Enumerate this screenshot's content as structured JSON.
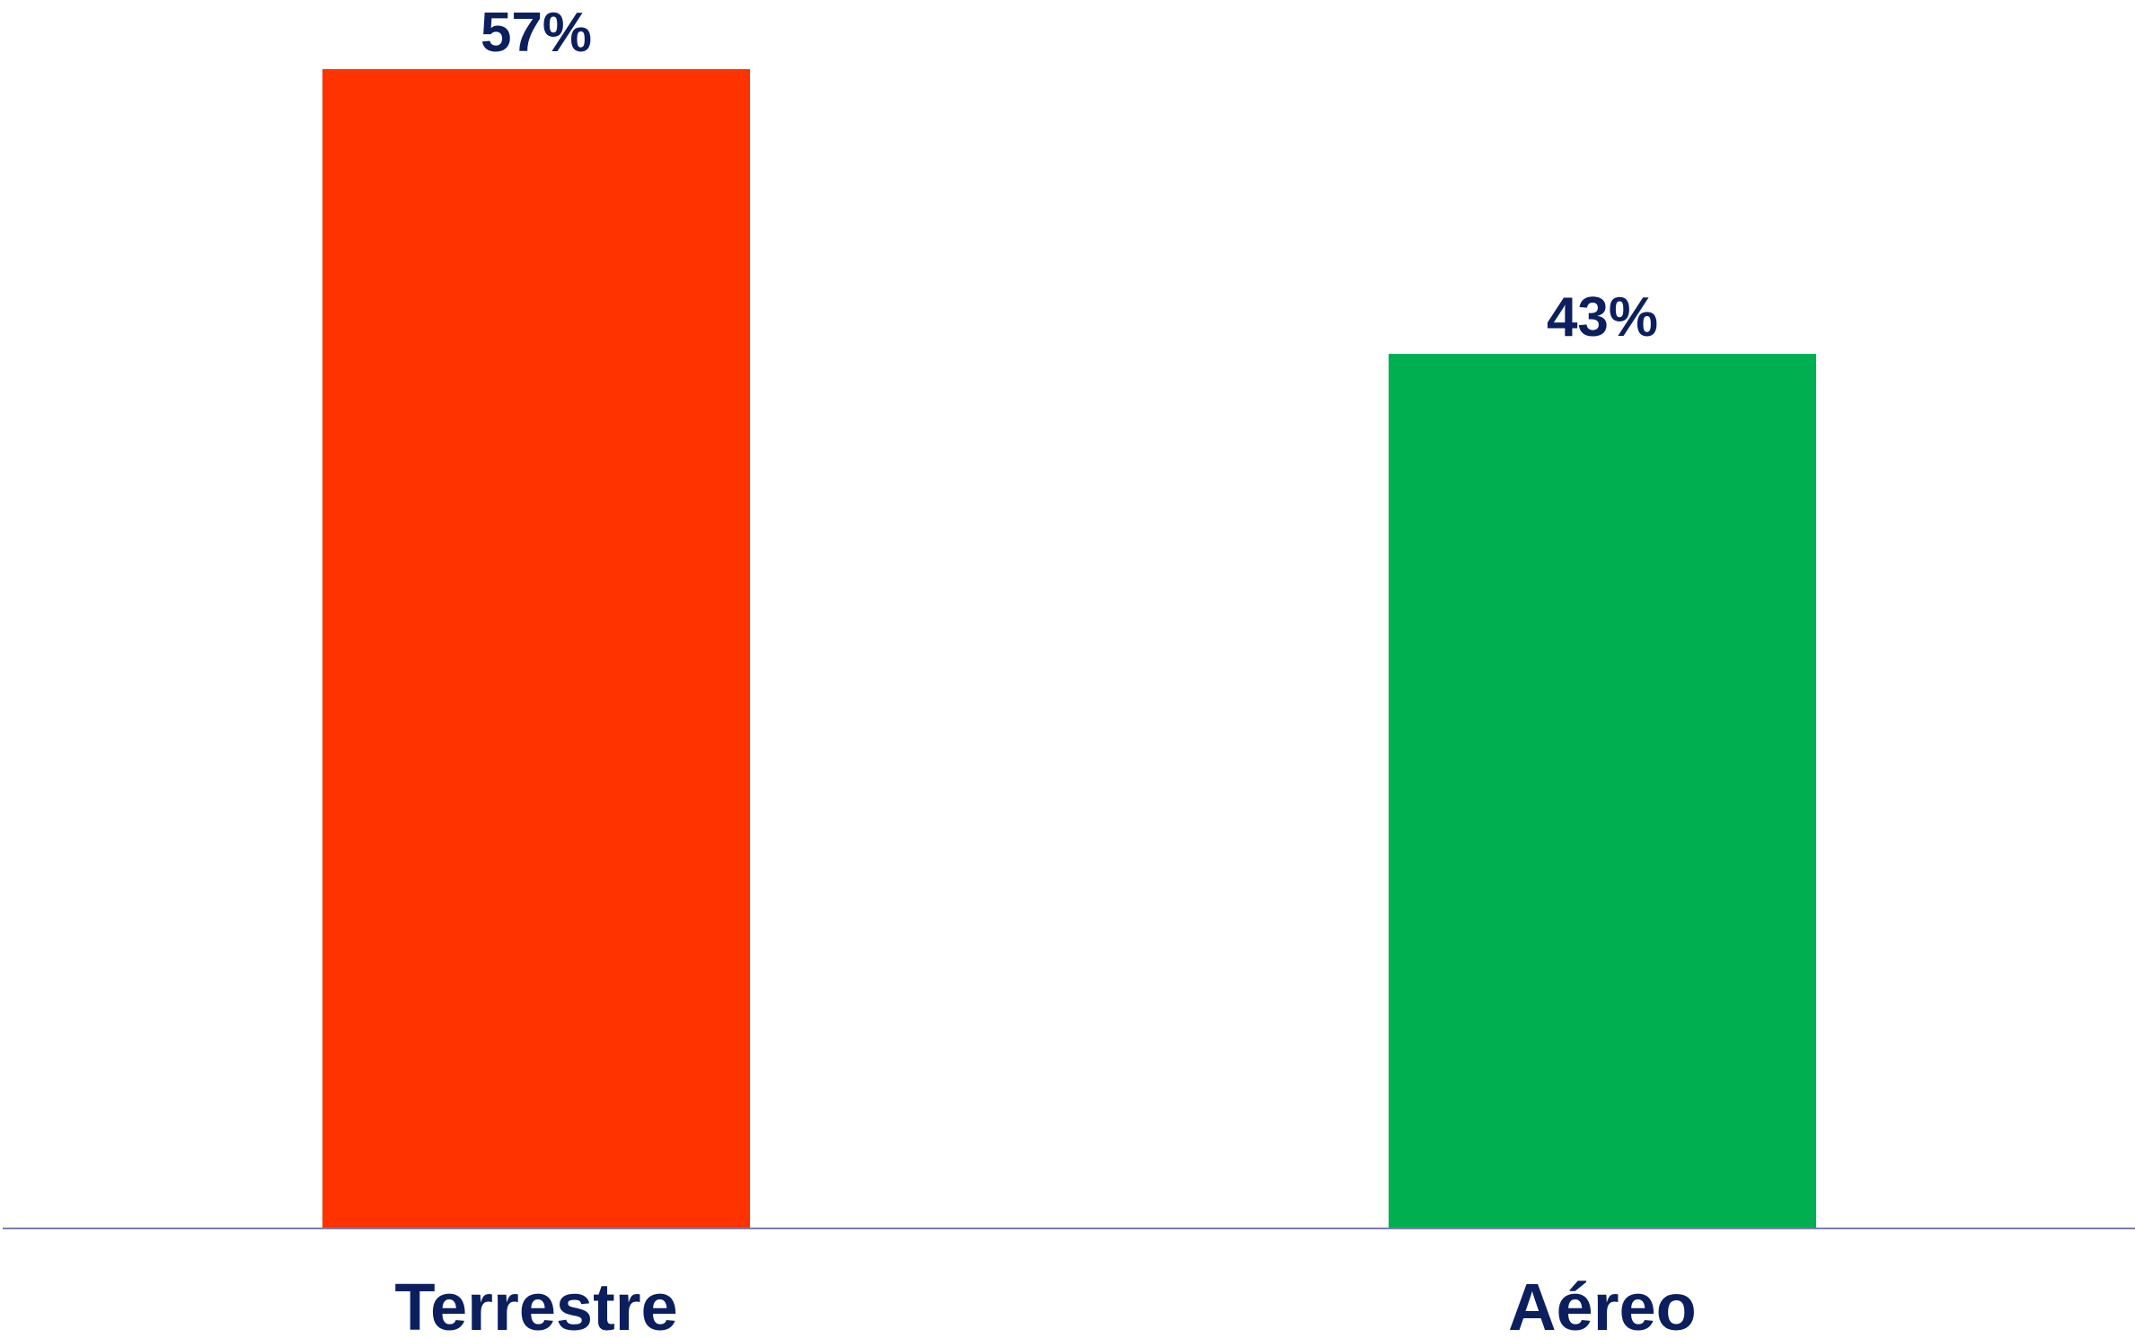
{
  "chart_data": {
    "type": "bar",
    "categories": [
      "Terrestre",
      "Aéreo"
    ],
    "values": [
      57,
      43
    ],
    "data_labels": [
      "57%",
      "43%"
    ],
    "bar_colors": [
      "#FF3300",
      "#00B050"
    ],
    "label_color": "#0B1F5E",
    "axis_color": "#7B7FA8",
    "ylim": [
      0,
      57
    ],
    "grid": false,
    "legend": "none"
  }
}
